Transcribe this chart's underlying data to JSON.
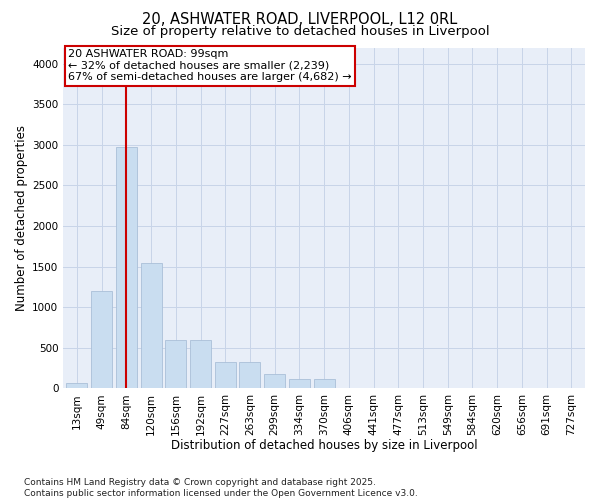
{
  "title1": "20, ASHWATER ROAD, LIVERPOOL, L12 0RL",
  "title2": "Size of property relative to detached houses in Liverpool",
  "xlabel": "Distribution of detached houses by size in Liverpool",
  "ylabel": "Number of detached properties",
  "categories": [
    "13sqm",
    "49sqm",
    "84sqm",
    "120sqm",
    "156sqm",
    "192sqm",
    "227sqm",
    "263sqm",
    "299sqm",
    "334sqm",
    "370sqm",
    "406sqm",
    "441sqm",
    "477sqm",
    "513sqm",
    "549sqm",
    "584sqm",
    "620sqm",
    "656sqm",
    "691sqm",
    "727sqm"
  ],
  "values": [
    60,
    1200,
    2980,
    1540,
    600,
    600,
    330,
    330,
    175,
    110,
    110,
    0,
    0,
    0,
    0,
    0,
    0,
    0,
    0,
    0,
    0
  ],
  "bar_color": "#c9ddf0",
  "bar_edge_color": "#aabfd8",
  "vline_x_index": 2.0,
  "vline_color": "#cc0000",
  "annotation_text": "20 ASHWATER ROAD: 99sqm\n← 32% of detached houses are smaller (2,239)\n67% of semi-detached houses are larger (4,682) →",
  "annotation_box_facecolor": "#ffffff",
  "annotation_box_edgecolor": "#cc0000",
  "annotation_text_color": "#000000",
  "ylim": [
    0,
    4200
  ],
  "yticks": [
    0,
    500,
    1000,
    1500,
    2000,
    2500,
    3000,
    3500,
    4000
  ],
  "grid_color": "#c8d4e8",
  "background_color": "#e8eef8",
  "footer_text": "Contains HM Land Registry data © Crown copyright and database right 2025.\nContains public sector information licensed under the Open Government Licence v3.0.",
  "title_fontsize": 10.5,
  "subtitle_fontsize": 9.5,
  "axis_label_fontsize": 8.5,
  "tick_fontsize": 7.5,
  "footer_fontsize": 6.5,
  "annotation_fontsize": 8.0
}
